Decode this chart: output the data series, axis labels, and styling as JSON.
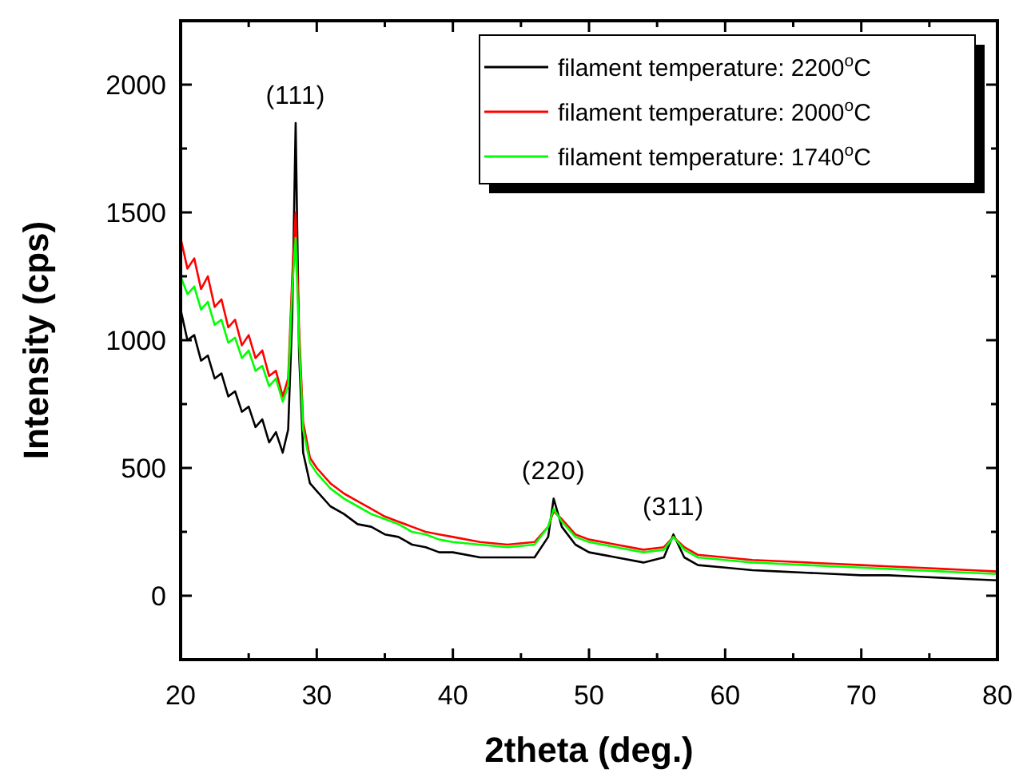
{
  "chart_data": {
    "type": "line",
    "xlabel": "2theta (deg.)",
    "ylabel": "Intensity (cps)",
    "xlim": [
      20,
      80
    ],
    "ylim": [
      -250,
      2250
    ],
    "xticks": [
      20,
      {
        "value": 25,
        "label": null
      },
      30,
      {
        "value": 35,
        "label": null
      },
      40,
      {
        "value": 45,
        "label": null
      },
      50,
      {
        "value": 55,
        "label": null
      },
      60,
      {
        "value": 65,
        "label": null
      },
      70,
      {
        "value": 75,
        "label": null
      },
      80
    ],
    "yticks": [
      0,
      {
        "value": 250,
        "label": null
      },
      500,
      {
        "value": 750,
        "label": null
      },
      1000,
      {
        "value": 1250,
        "label": null
      },
      1500,
      {
        "value": 1750,
        "label": null
      },
      2000
    ],
    "legend": "top right",
    "grid": false,
    "marker": "none",
    "line_style": "solid",
    "annotations": [
      {
        "text": "(111)",
        "x": 28.45,
        "y": 1850
      },
      {
        "text": "(220)",
        "x": 47.4,
        "y": 380
      },
      {
        "text": "(311)",
        "x": 56.2,
        "y": 240
      }
    ],
    "series": [
      {
        "name": "filament temperature: 2200$^{o}$C",
        "color": "#000000",
        "x": [
          20,
          20.5,
          21,
          21.5,
          22,
          22.5,
          23,
          23.5,
          24,
          24.5,
          25,
          25.5,
          26,
          26.5,
          27,
          27.5,
          27.9,
          28.2,
          28.45,
          28.7,
          29,
          29.5,
          30,
          31,
          32,
          33,
          34,
          35,
          36,
          37,
          38,
          39,
          40,
          42,
          44,
          46,
          47,
          47.4,
          48,
          49,
          50,
          52,
          54,
          55.5,
          56.2,
          57,
          58,
          60,
          62,
          64,
          66,
          68,
          70,
          72,
          74,
          76,
          78,
          80
        ],
        "values": [
          1120,
          1000,
          1020,
          920,
          940,
          850,
          870,
          780,
          800,
          720,
          740,
          660,
          690,
          600,
          640,
          560,
          650,
          1100,
          1850,
          950,
          560,
          440,
          410,
          350,
          320,
          280,
          270,
          240,
          230,
          200,
          190,
          170,
          170,
          150,
          150,
          150,
          230,
          380,
          270,
          200,
          170,
          150,
          130,
          150,
          240,
          150,
          120,
          110,
          100,
          95,
          90,
          85,
          80,
          80,
          75,
          70,
          65,
          60
        ]
      },
      {
        "name": "filament temperature: 2000$^{o}$C",
        "color": "#ff0000",
        "x": [
          20,
          20.5,
          21,
          21.5,
          22,
          22.5,
          23,
          23.5,
          24,
          24.5,
          25,
          25.5,
          26,
          26.5,
          27,
          27.5,
          27.9,
          28.2,
          28.45,
          28.7,
          29,
          29.5,
          30,
          31,
          32,
          33,
          34,
          35,
          36,
          37,
          38,
          39,
          40,
          42,
          44,
          46,
          47,
          47.4,
          48,
          49,
          50,
          52,
          54,
          55.5,
          56.2,
          57,
          58,
          60,
          62,
          64,
          66,
          68,
          70,
          72,
          74,
          76,
          78,
          80
        ],
        "values": [
          1400,
          1280,
          1320,
          1200,
          1250,
          1130,
          1160,
          1050,
          1080,
          980,
          1020,
          930,
          960,
          860,
          880,
          780,
          850,
          1250,
          1500,
          1050,
          680,
          540,
          500,
          440,
          400,
          370,
          340,
          310,
          290,
          270,
          250,
          240,
          230,
          210,
          200,
          210,
          270,
          330,
          300,
          240,
          220,
          200,
          180,
          190,
          230,
          190,
          160,
          150,
          140,
          135,
          130,
          125,
          120,
          115,
          110,
          105,
          100,
          95
        ]
      },
      {
        "name": "filament temperature: 1740$^{o}$C",
        "color": "#00ff00",
        "x": [
          20,
          20.5,
          21,
          21.5,
          22,
          22.5,
          23,
          23.5,
          24,
          24.5,
          25,
          25.5,
          26,
          26.5,
          27,
          27.5,
          27.9,
          28.2,
          28.45,
          28.7,
          29,
          29.5,
          30,
          31,
          32,
          33,
          34,
          35,
          36,
          37,
          38,
          39,
          40,
          42,
          44,
          46,
          47,
          47.4,
          48,
          49,
          50,
          52,
          54,
          55.5,
          56.2,
          57,
          58,
          60,
          62,
          64,
          66,
          68,
          70,
          72,
          74,
          76,
          78,
          80
        ],
        "values": [
          1250,
          1180,
          1210,
          1120,
          1150,
          1060,
          1080,
          990,
          1010,
          930,
          960,
          880,
          900,
          820,
          850,
          760,
          820,
          1200,
          1400,
          1000,
          650,
          520,
          480,
          420,
          380,
          350,
          320,
          300,
          280,
          250,
          240,
          220,
          210,
          200,
          190,
          200,
          270,
          340,
          290,
          230,
          210,
          190,
          170,
          180,
          230,
          180,
          150,
          140,
          130,
          125,
          120,
          115,
          110,
          105,
          100,
          95,
          90,
          85
        ]
      }
    ]
  }
}
